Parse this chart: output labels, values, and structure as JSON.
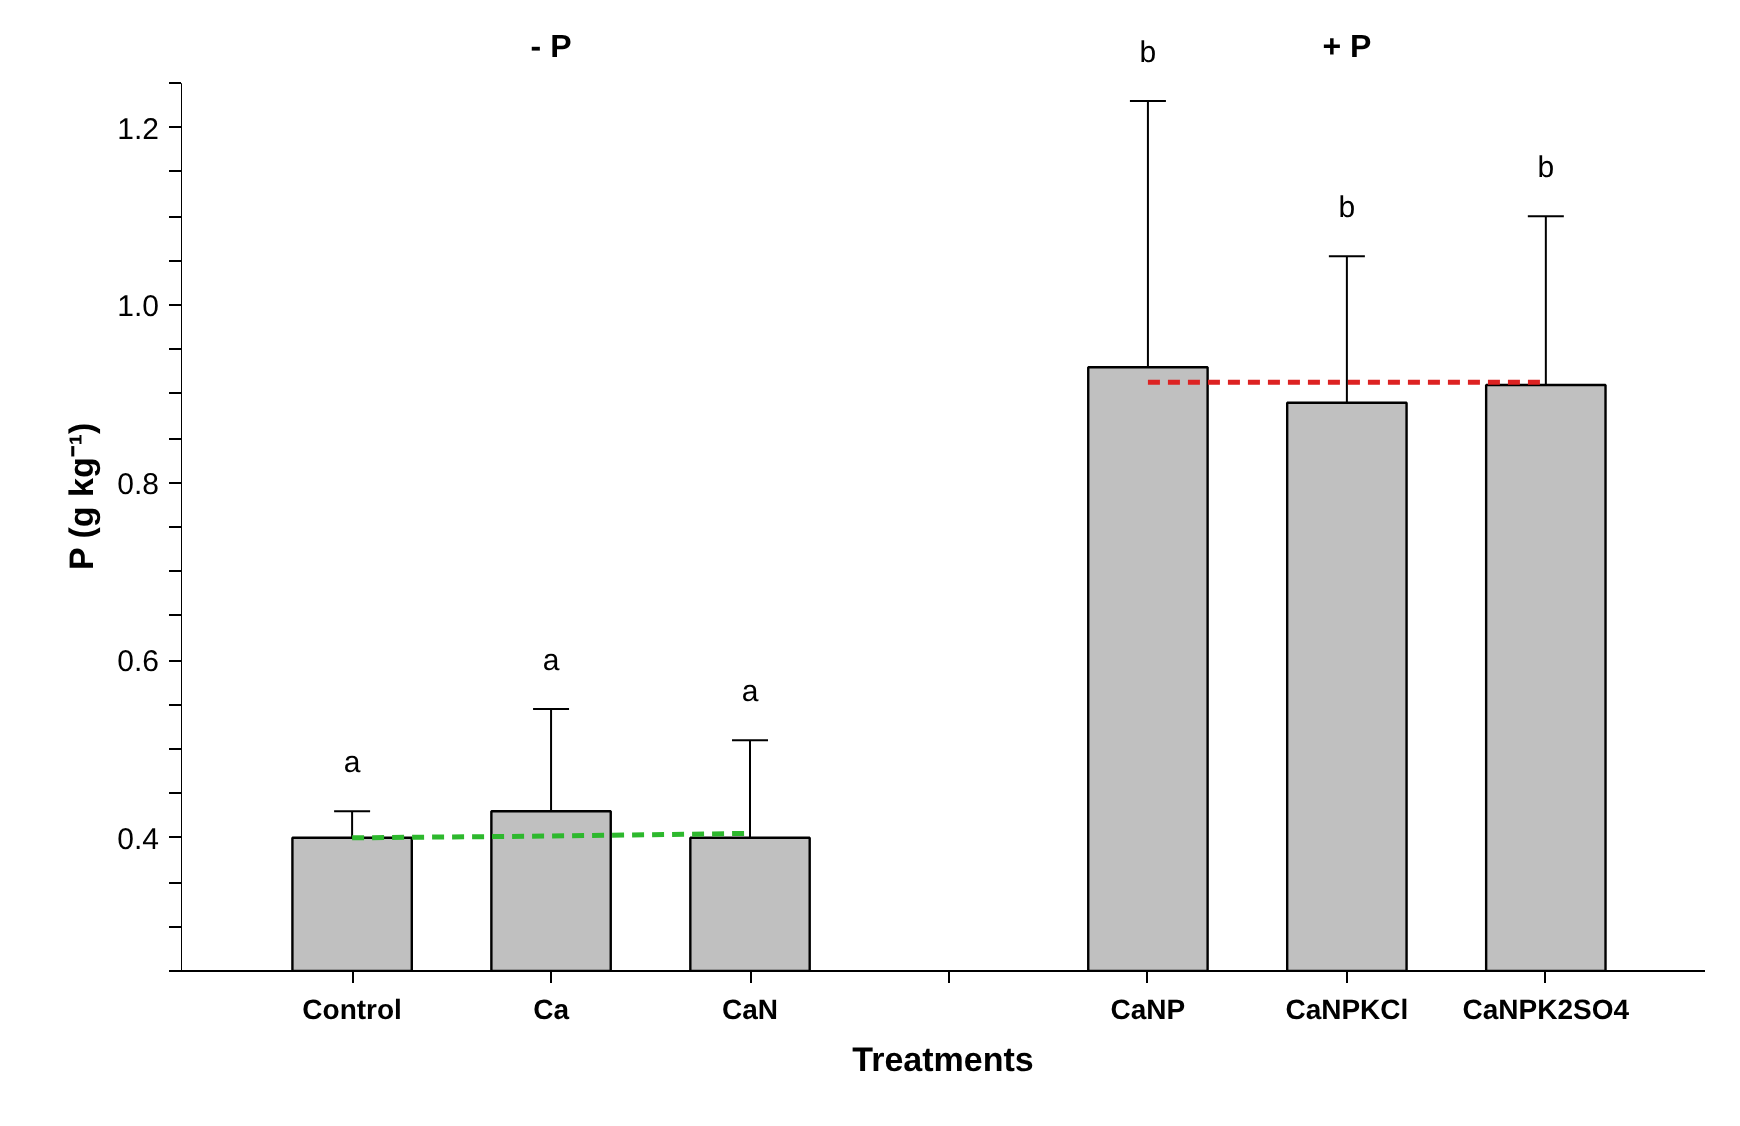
{
  "chart_data": {
    "type": "bar",
    "xlabel": "Treatments",
    "ylabel": "P (g kg⁻¹)",
    "categories": [
      "Control",
      "Ca",
      "CaN",
      null,
      "CaNP",
      "CaNPKCl",
      "CaNPK2SO4"
    ],
    "series": [
      {
        "color": "#c0c0c0",
        "values": [
          0.4,
          0.43,
          0.4,
          null,
          0.93,
          0.89,
          0.91
        ],
        "errors": [
          0.03,
          0.115,
          0.11,
          null,
          0.3,
          0.165,
          0.19
        ]
      },
      {
        "type": "line",
        "color": "#2db82d",
        "line_style": "dashed",
        "values": [
          0.4,
          0.402,
          0.405,
          null,
          null,
          null,
          null
        ]
      },
      {
        "type": "line",
        "color": "#dd2222",
        "line_style": "dashed",
        "values": [
          null,
          null,
          null,
          null,
          0.913,
          0.913,
          0.913
        ]
      }
    ],
    "ylim": [
      0.25,
      1.25
    ],
    "yticks": [
      {
        "value": 0.25,
        "label": null
      },
      {
        "value": 0.3,
        "label": null
      },
      {
        "value": 0.35,
        "label": null
      },
      0.4,
      {
        "value": 0.45,
        "label": null
      },
      {
        "value": 0.5,
        "label": null
      },
      {
        "value": 0.55,
        "label": null
      },
      0.6,
      {
        "value": 0.65,
        "label": null
      },
      {
        "value": 0.7,
        "label": null
      },
      {
        "value": 0.75,
        "label": null
      },
      0.8,
      {
        "value": 0.85,
        "label": null
      },
      {
        "value": 0.9,
        "label": null
      },
      {
        "value": 0.95,
        "label": null
      },
      {
        "value": 1.0,
        "label": "1.0"
      },
      {
        "value": 1.05,
        "label": null
      },
      {
        "value": 1.1,
        "label": null
      },
      {
        "value": 1.15,
        "label": null
      },
      1.2,
      {
        "value": 1.25,
        "label": null
      }
    ],
    "annotations": [
      "- P",
      "+ P",
      "a",
      "a",
      "a",
      "b",
      "b",
      "b"
    ],
    "grid": false
  }
}
